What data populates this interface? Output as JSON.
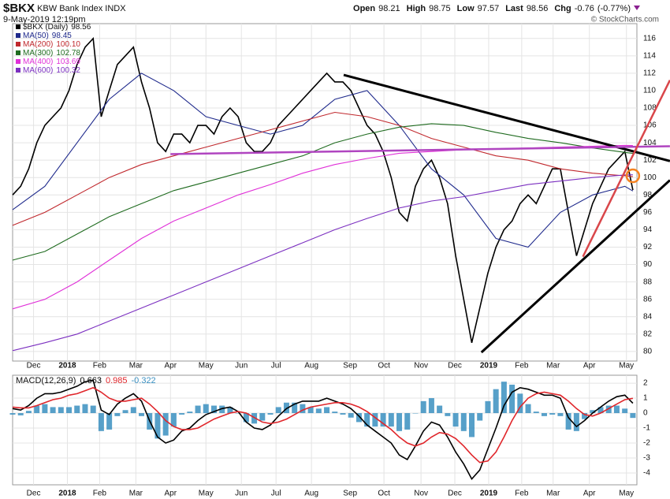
{
  "header": {
    "symbol": "$BKX",
    "name": "KBW Bank Index",
    "exchange": "INDX",
    "date": "9-May-2019 12:19pm",
    "watermark": "© StockCharts.com",
    "quote": [
      {
        "label": "Open",
        "value": 98.21
      },
      {
        "label": "High",
        "value": 98.75
      },
      {
        "label": "Low",
        "value": 97.57
      },
      {
        "label": "Last",
        "value": 98.56
      },
      {
        "label": "Chg",
        "value": -0.76
      }
    ],
    "chg_pct": "(-0.77%)"
  },
  "chart_data": [
    {
      "type": "line",
      "x": [
        0,
        1,
        2,
        3,
        4,
        5,
        6,
        7,
        8,
        9,
        10,
        11,
        12,
        13,
        14,
        15,
        16,
        17,
        18,
        19,
        20,
        21,
        22,
        23,
        24,
        25,
        26,
        27,
        28,
        29,
        30,
        31,
        32,
        33,
        34,
        35,
        36,
        37,
        38,
        39,
        40,
        41,
        42,
        43,
        44,
        45,
        46,
        47,
        48,
        49,
        50,
        51,
        52,
        53,
        54,
        55,
        56,
        57,
        58,
        59,
        60,
        61,
        62,
        63,
        64,
        65,
        66,
        67,
        68,
        69,
        70,
        71,
        72,
        73,
        74,
        75,
        76,
        77
      ],
      "xlim": [
        0,
        77.5
      ],
      "xticks": [
        {
          "value": 2.6,
          "label": "Dec"
        },
        {
          "value": 6.8,
          "label": "2018"
        },
        {
          "value": 10.8,
          "label": "Feb"
        },
        {
          "value": 15.3,
          "label": "Mar"
        },
        {
          "value": 19.6,
          "label": "Apr"
        },
        {
          "value": 24.0,
          "label": "May"
        },
        {
          "value": 28.4,
          "label": "Jun"
        },
        {
          "value": 32.7,
          "label": "Jul"
        },
        {
          "value": 37.1,
          "label": "Aug"
        },
        {
          "value": 41.9,
          "label": "Sep"
        },
        {
          "value": 46.1,
          "label": "Oct"
        },
        {
          "value": 50.7,
          "label": "Nov"
        },
        {
          "value": 54.9,
          "label": "Dec"
        },
        {
          "value": 59.1,
          "label": "2019"
        },
        {
          "value": 63.2,
          "label": "Feb"
        },
        {
          "value": 67.1,
          "label": "Mar"
        },
        {
          "value": 71.6,
          "label": "Apr"
        },
        {
          "value": 76.2,
          "label": "May"
        }
      ],
      "ylim": [
        78.9,
        117.7
      ],
      "yticks": [
        80,
        82,
        84,
        86,
        88,
        90,
        92,
        94,
        96,
        98,
        100,
        102,
        104,
        106,
        108,
        110,
        112,
        114,
        116
      ],
      "grid": true,
      "series": [
        {
          "name": "$BKX (Daily)",
          "last_label": "98.56",
          "color": "#000000",
          "values": [
            98,
            99,
            101,
            104,
            106,
            107,
            108,
            110,
            113,
            115,
            116,
            107,
            110,
            113,
            114,
            115,
            111,
            108,
            104,
            103,
            105,
            105,
            104,
            106,
            106,
            105,
            107,
            108,
            107,
            104,
            103,
            103,
            104,
            106,
            107,
            108,
            109,
            110,
            111,
            112,
            111,
            111,
            110,
            108,
            106,
            105,
            103,
            100,
            96,
            95,
            99,
            101,
            102,
            100,
            97,
            91,
            86,
            81,
            85,
            89,
            92,
            94,
            95,
            97,
            98,
            97,
            99,
            101,
            101,
            96,
            91,
            94,
            97,
            99,
            101,
            102,
            103,
            98.56
          ]
        },
        {
          "name": "MA(50)",
          "last_label": "98.45",
          "color": "#1f2a8c",
          "x": [
            0,
            4,
            8,
            12,
            16,
            20,
            24,
            28,
            32,
            36,
            40,
            44,
            48,
            52,
            56,
            60,
            64,
            68,
            72,
            76,
            77
          ],
          "values": [
            96.3,
            99,
            104,
            109,
            112,
            110,
            107,
            106,
            105,
            106,
            109,
            110,
            106,
            101,
            98,
            93,
            92,
            96,
            98,
            99,
            98.45
          ]
        },
        {
          "name": "MA(200)",
          "last_label": "100.10",
          "color": "#c0282d",
          "x": [
            0,
            4,
            8,
            12,
            16,
            20,
            24,
            28,
            32,
            36,
            40,
            44,
            48,
            52,
            56,
            60,
            64,
            68,
            72,
            76,
            77
          ],
          "values": [
            94.5,
            96,
            98,
            100,
            101.5,
            102.5,
            103.5,
            104.5,
            105.5,
            106.5,
            107.5,
            107,
            106,
            104.5,
            103.5,
            102.5,
            102,
            101,
            100.5,
            100.2,
            100.1
          ]
        },
        {
          "name": "MA(300)",
          "last_label": "102.78",
          "color": "#1f6b1f",
          "x": [
            0,
            4,
            8,
            12,
            16,
            20,
            24,
            28,
            32,
            36,
            40,
            44,
            48,
            52,
            56,
            60,
            64,
            68,
            72,
            76,
            77
          ],
          "values": [
            90.5,
            91.5,
            93.5,
            95.5,
            97,
            98.5,
            99.5,
            100.5,
            101.5,
            102.5,
            104,
            105,
            105.8,
            106.2,
            106,
            105.2,
            104.5,
            104,
            103.4,
            102.9,
            102.78
          ]
        },
        {
          "name": "MA(400)",
          "last_label": "103.69",
          "color": "#e030d8",
          "x": [
            0,
            4,
            8,
            12,
            16,
            20,
            24,
            28,
            32,
            36,
            40,
            44,
            48,
            52,
            56,
            60,
            64,
            68,
            72,
            76,
            77
          ],
          "values": [
            84.9,
            86,
            88,
            90.5,
            93,
            95,
            96.5,
            98,
            99.2,
            100.5,
            101.5,
            102.2,
            102.8,
            103,
            103.2,
            103.3,
            103.4,
            103.5,
            103.6,
            103.7,
            103.69
          ]
        },
        {
          "name": "MA(600)",
          "last_label": "100.32",
          "color": "#7b2fc0",
          "x": [
            0,
            4,
            8,
            12,
            16,
            20,
            24,
            28,
            32,
            36,
            40,
            44,
            48,
            52,
            56,
            60,
            64,
            68,
            72,
            76,
            77
          ],
          "values": [
            80.1,
            81,
            82,
            83.5,
            85,
            86.5,
            88,
            89.5,
            91,
            92.5,
            94,
            95.3,
            96.5,
            97.3,
            97.8,
            98.5,
            99.2,
            99.6,
            100,
            100.3,
            100.32
          ]
        }
      ],
      "trendlines": [
        {
          "x": [
            41.1,
            81.6
          ],
          "y": [
            111.8,
            101.9
          ],
          "color": "#000000"
        },
        {
          "x": [
            58.2,
            81.6
          ],
          "y": [
            79.9,
            99.7
          ],
          "color": "#000000"
        },
        {
          "x": [
            19.6,
            81.6
          ],
          "y": [
            102.7,
            103.6
          ],
          "color": "#b045c0"
        },
        {
          "x": [
            70.8,
            81.6
          ],
          "y": [
            90.9,
            111.2
          ],
          "color": "#d9464a"
        }
      ],
      "marker": {
        "x": 77,
        "y": 100.2,
        "color": "#f58220"
      }
    },
    {
      "type": "line",
      "title": "MACD(12,26,9)",
      "xlim": [
        0,
        77.5
      ],
      "ylim": [
        -4.79,
        2.53
      ],
      "yticks": [
        2,
        1,
        0,
        -1,
        -2,
        -3,
        -4
      ],
      "grid": true,
      "series": [
        {
          "name": "MACD",
          "last_label": "0.663",
          "color": "#000000",
          "values": [
            0.3,
            0.2,
            0.5,
            1.0,
            1.3,
            1.3,
            1.4,
            1.6,
            1.8,
            2.1,
            2.2,
            0.2,
            -0.1,
            0.6,
            1.0,
            1.3,
            0.8,
            -0.5,
            -1.6,
            -2.0,
            -1.8,
            -1.2,
            -1.0,
            -0.5,
            -0.1,
            0.1,
            0.3,
            0.4,
            0.1,
            -0.6,
            -1.0,
            -1.1,
            -0.8,
            -0.2,
            0.3,
            0.6,
            0.8,
            0.8,
            0.8,
            1.0,
            0.8,
            0.6,
            0.3,
            -0.2,
            -0.8,
            -1.2,
            -1.6,
            -2.0,
            -2.8,
            -3.1,
            -2.2,
            -1.2,
            -0.6,
            -0.8,
            -1.6,
            -2.6,
            -3.4,
            -4.4,
            -3.8,
            -2.4,
            -1.0,
            0.5,
            1.4,
            1.7,
            1.6,
            1.4,
            1.2,
            1.2,
            1.0,
            -0.3,
            -0.9,
            -0.5,
            0.0,
            0.4,
            0.8,
            1.1,
            1.2,
            0.663
          ]
        },
        {
          "name": "Signal",
          "last_label": "0.985",
          "color": "#e0262b",
          "values": [
            0.4,
            0.35,
            0.35,
            0.5,
            0.7,
            0.9,
            1.0,
            1.2,
            1.3,
            1.5,
            1.7,
            1.4,
            1.0,
            0.8,
            0.8,
            0.9,
            1.0,
            0.6,
            0.1,
            -0.5,
            -0.9,
            -1.1,
            -1.1,
            -1.0,
            -0.7,
            -0.4,
            -0.2,
            0.0,
            0.1,
            0.0,
            -0.3,
            -0.6,
            -0.7,
            -0.6,
            -0.4,
            -0.1,
            0.2,
            0.4,
            0.5,
            0.6,
            0.7,
            0.7,
            0.6,
            0.4,
            0.1,
            -0.3,
            -0.7,
            -1.1,
            -1.6,
            -2.0,
            -2.2,
            -2.0,
            -1.6,
            -1.3,
            -1.4,
            -1.7,
            -2.2,
            -2.8,
            -3.3,
            -3.2,
            -2.6,
            -1.6,
            -0.5,
            0.4,
            1.0,
            1.3,
            1.4,
            1.3,
            1.2,
            0.8,
            0.3,
            -0.1,
            -0.2,
            0.0,
            0.3,
            0.6,
            0.9,
            0.985
          ]
        },
        {
          "name": "Histogram",
          "type": "bar",
          "last_label": "-0.322",
          "color": "#3a8fc0",
          "values": [
            -0.1,
            -0.15,
            0.15,
            0.5,
            0.6,
            0.4,
            0.4,
            0.4,
            0.5,
            0.6,
            0.5,
            -1.2,
            -1.1,
            -0.2,
            0.2,
            0.4,
            -0.2,
            -1.1,
            -1.7,
            -1.5,
            -0.9,
            -0.1,
            0.1,
            0.5,
            0.6,
            0.5,
            0.5,
            0.4,
            0,
            -0.6,
            -0.7,
            -0.5,
            -0.1,
            0.4,
            0.7,
            0.7,
            0.6,
            0.4,
            0.3,
            0.4,
            0.1,
            -0.1,
            -0.3,
            -0.6,
            -0.9,
            -0.9,
            -0.9,
            -0.9,
            -1.2,
            -1.1,
            0,
            0.8,
            1.0,
            0.5,
            -0.2,
            -0.9,
            -1.2,
            -1.6,
            -0.5,
            0.8,
            1.6,
            2.1,
            1.9,
            1.3,
            0.6,
            0.1,
            -0.2,
            -0.1,
            -0.2,
            -1.1,
            -1.2,
            -0.4,
            0.2,
            0.4,
            0.5,
            0.5,
            0.3,
            -0.322
          ]
        }
      ]
    }
  ]
}
